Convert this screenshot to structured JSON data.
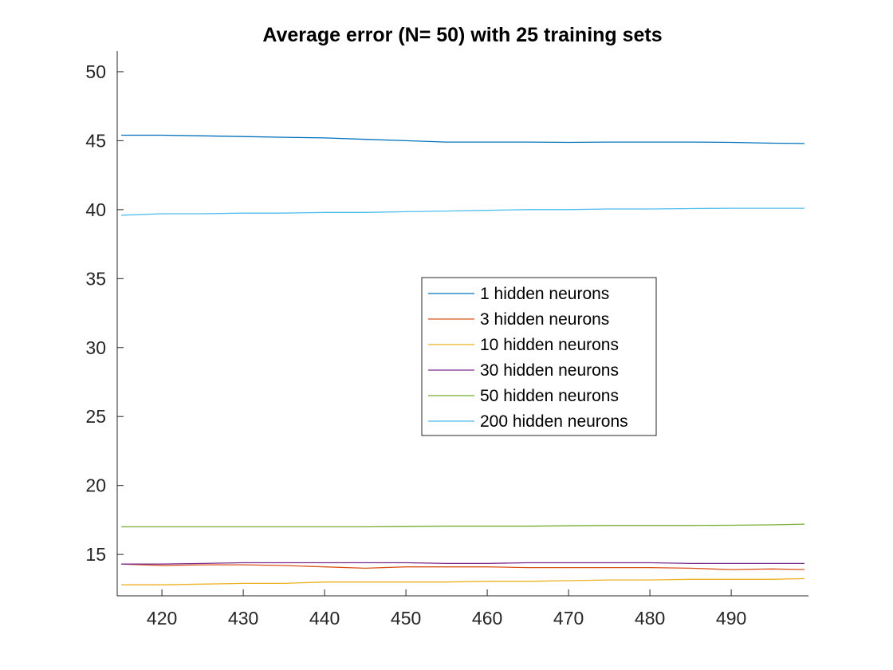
{
  "chart_data": {
    "type": "line",
    "title": "Average error (N= 50) with 25 training sets",
    "xlabel": "",
    "ylabel": "",
    "xlim": [
      414.5,
      499.5
    ],
    "ylim": [
      12,
      51.5
    ],
    "xticks": [
      420,
      430,
      440,
      450,
      460,
      470,
      480,
      490
    ],
    "yticks": [
      15,
      20,
      25,
      30,
      35,
      40,
      45,
      50
    ],
    "grid": false,
    "legend_position": "center-right",
    "x": [
      415,
      420,
      425,
      430,
      435,
      440,
      445,
      450,
      455,
      460,
      465,
      470,
      475,
      480,
      485,
      490,
      495,
      499
    ],
    "series": [
      {
        "name": "1 hidden neurons",
        "color": "#0072BD",
        "values": [
          45.4,
          45.4,
          45.35,
          45.3,
          45.25,
          45.2,
          45.1,
          45.0,
          44.9,
          44.9,
          44.9,
          44.88,
          44.9,
          44.9,
          44.9,
          44.88,
          44.82,
          44.8
        ]
      },
      {
        "name": "3 hidden neurons",
        "color": "#D95319",
        "values": [
          14.3,
          14.2,
          14.25,
          14.25,
          14.2,
          14.1,
          14.0,
          14.1,
          14.1,
          14.1,
          14.05,
          14.05,
          14.05,
          14.05,
          14.0,
          13.9,
          13.95,
          13.9
        ]
      },
      {
        "name": "10 hidden neurons",
        "color": "#EDB120",
        "values": [
          12.8,
          12.8,
          12.85,
          12.9,
          12.9,
          13.0,
          13.0,
          13.0,
          13.0,
          13.05,
          13.05,
          13.1,
          13.15,
          13.15,
          13.2,
          13.2,
          13.2,
          13.25
        ]
      },
      {
        "name": "30 hidden neurons",
        "color": "#7E2F8E",
        "values": [
          14.3,
          14.3,
          14.35,
          14.4,
          14.4,
          14.4,
          14.4,
          14.4,
          14.35,
          14.35,
          14.4,
          14.4,
          14.4,
          14.4,
          14.35,
          14.35,
          14.35,
          14.35
        ]
      },
      {
        "name": "50 hidden neurons",
        "color": "#77AC30",
        "values": [
          17.0,
          17.0,
          17.0,
          17.0,
          17.0,
          17.0,
          17.0,
          17.02,
          17.05,
          17.05,
          17.05,
          17.08,
          17.1,
          17.1,
          17.1,
          17.12,
          17.15,
          17.2
        ]
      },
      {
        "name": "200 hidden neurons",
        "color": "#4DBEEE",
        "values": [
          39.6,
          39.7,
          39.7,
          39.75,
          39.75,
          39.8,
          39.8,
          39.85,
          39.9,
          39.95,
          40.0,
          40.0,
          40.05,
          40.05,
          40.08,
          40.1,
          40.1,
          40.1
        ]
      }
    ]
  }
}
